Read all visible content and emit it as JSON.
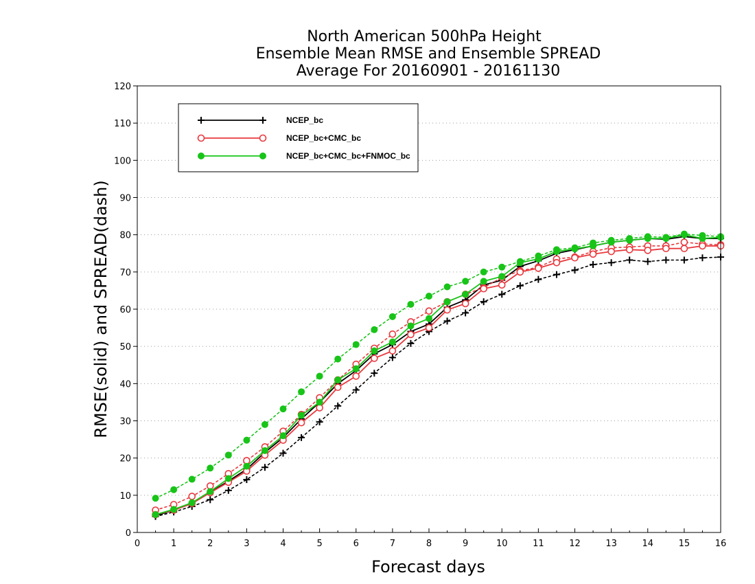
{
  "chart_data": {
    "type": "line",
    "title_lines": [
      "North American 500hPa Height",
      "Ensemble Mean RMSE and Ensemble SPREAD",
      "Average For 20160901 - 20161130"
    ],
    "xlabel": "Forecast days",
    "ylabel": "RMSE(solid) and SPREAD(dash)",
    "xlim": [
      0,
      16
    ],
    "ylim": [
      0,
      120
    ],
    "x_ticks": [
      0,
      1,
      2,
      3,
      4,
      5,
      6,
      7,
      8,
      9,
      10,
      11,
      12,
      13,
      14,
      15,
      16
    ],
    "y_ticks": [
      0,
      10,
      20,
      30,
      40,
      50,
      60,
      70,
      80,
      90,
      100,
      110,
      120
    ],
    "grid": "horizontal dotted",
    "legend_position": "top-left",
    "x": [
      0.5,
      1.0,
      1.5,
      2.0,
      2.5,
      3.0,
      3.5,
      4.0,
      4.5,
      5.0,
      5.5,
      6.0,
      6.5,
      7.0,
      7.5,
      8.0,
      8.5,
      9.0,
      9.5,
      10.0,
      10.5,
      11.0,
      11.5,
      12.0,
      12.5,
      13.0,
      13.5,
      14.0,
      14.5,
      15.0,
      15.5,
      16.0
    ],
    "series": [
      {
        "name": "NCEP_bc",
        "color": "#000000",
        "marker": "plus",
        "rmse": [
          4.5,
          6.0,
          7.8,
          10.8,
          13.8,
          17.0,
          21.5,
          25.5,
          30.5,
          35.0,
          40.0,
          43.5,
          48.0,
          50.5,
          54.0,
          56.0,
          60.5,
          62.5,
          66.5,
          67.8,
          71.5,
          73.0,
          75.0,
          76.0,
          77.0,
          78.0,
          78.5,
          79.0,
          78.8,
          79.5,
          79.0,
          79.0
        ],
        "spread": [
          4.3,
          5.5,
          7.0,
          8.8,
          11.3,
          14.2,
          17.5,
          21.3,
          25.5,
          29.7,
          34.0,
          38.3,
          42.8,
          47.0,
          50.8,
          54.0,
          56.8,
          59.0,
          62.0,
          64.0,
          66.3,
          68.0,
          69.3,
          70.5,
          72.0,
          72.5,
          73.2,
          72.8,
          73.2,
          73.2,
          73.8,
          74.0
        ]
      },
      {
        "name": "NCEP_bc+CMC_bc",
        "color": "#e8383d",
        "marker": "open-circle",
        "rmse": [
          4.8,
          6.0,
          7.8,
          10.7,
          13.5,
          16.5,
          20.8,
          24.8,
          29.5,
          33.5,
          39.0,
          42.0,
          46.8,
          48.8,
          53.2,
          55.0,
          59.8,
          61.5,
          65.5,
          66.5,
          70.0,
          71.0,
          72.5,
          73.8,
          74.8,
          75.5,
          76.0,
          75.8,
          76.3,
          76.3,
          77.0,
          77.0
        ],
        "spread": [
          6.0,
          7.5,
          9.7,
          12.5,
          15.8,
          19.3,
          23.0,
          27.2,
          31.7,
          36.2,
          41.0,
          45.2,
          49.5,
          53.3,
          56.6,
          59.5,
          62.0,
          64.0,
          65.8,
          68.5,
          70.3,
          71.3,
          73.5,
          74.0,
          75.5,
          76.5,
          76.7,
          77.0,
          77.0,
          78.0,
          77.5,
          77.3
        ]
      },
      {
        "name": "NCEP_bc+CMC_bc+FNMOC_bc",
        "color": "#18c418",
        "marker": "filled-circle",
        "rmse": [
          4.8,
          6.2,
          8.0,
          11.0,
          14.5,
          17.8,
          22.0,
          26.0,
          31.5,
          35.0,
          41.0,
          44.0,
          48.8,
          51.2,
          55.5,
          57.5,
          62.0,
          64.0,
          67.5,
          68.8,
          72.5,
          73.5,
          75.5,
          76.2,
          77.0,
          78.0,
          78.5,
          79.0,
          79.0,
          80.0,
          79.0,
          79.3
        ],
        "spread": [
          9.2,
          11.5,
          14.3,
          17.3,
          20.8,
          24.8,
          29.0,
          33.2,
          37.8,
          42.0,
          46.6,
          50.5,
          54.5,
          58.0,
          61.3,
          63.5,
          66.0,
          67.5,
          70.0,
          71.3,
          72.8,
          74.3,
          76.0,
          76.5,
          77.8,
          78.5,
          79.0,
          79.5,
          79.3,
          80.2,
          79.8,
          79.5
        ]
      }
    ]
  }
}
